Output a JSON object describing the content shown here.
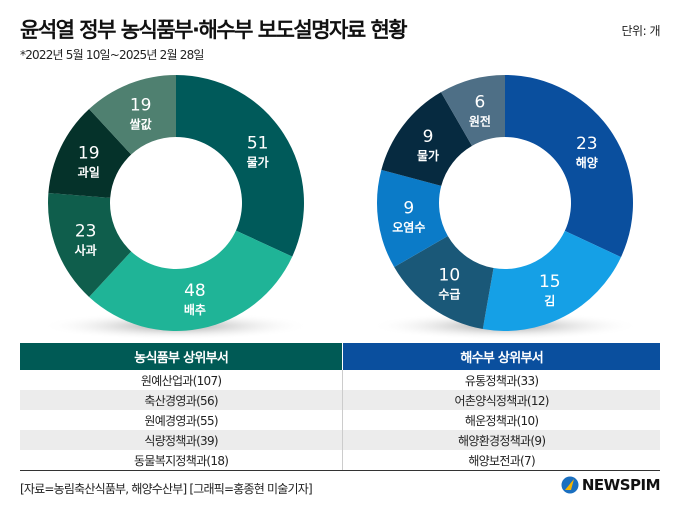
{
  "header": {
    "title": "윤석열 정부 농식품부·해수부 보도설명자료 현황",
    "subtitle": "*2022년 5월 10일~2025년 2월 28일",
    "unit": "단위: 개"
  },
  "chart_data": [
    {
      "type": "pie",
      "donut": true,
      "start": "top",
      "direction": "clockwise",
      "categories": [
        "물가",
        "배추",
        "사과",
        "과일",
        "쌀값"
      ],
      "values": [
        51,
        48,
        23,
        19,
        19
      ],
      "colors": [
        "#005a5a",
        "#1fb497",
        "#0f5e4c",
        "#05322a",
        "#4f8070"
      ]
    },
    {
      "type": "pie",
      "donut": true,
      "start": "top",
      "direction": "clockwise",
      "categories": [
        "해양",
        "김",
        "수급",
        "오염수",
        "물가",
        "원전"
      ],
      "values": [
        23,
        15,
        10,
        9,
        9,
        6
      ],
      "colors": [
        "#0a4f9e",
        "#15a0e6",
        "#1a5878",
        "#0b7bc8",
        "#062a40",
        "#4e6f86"
      ]
    }
  ],
  "table": {
    "headers": [
      "농식품부 상위부서",
      "해수부 상위부서"
    ],
    "rows": [
      [
        "원예산업과(107)",
        "유통정책과(33)"
      ],
      [
        "축산경영과(56)",
        "어촌양식정책과(12)"
      ],
      [
        "원예경영과(55)",
        "해운정책과(10)"
      ],
      [
        "식량정책과(39)",
        "해양환경정책과(9)"
      ],
      [
        "동물복지정책과(18)",
        "해양보전과(7)"
      ]
    ]
  },
  "footer": {
    "source": "[자료=농림축산식품부, 해양수산부] [그래픽=홍종현 미술기자]",
    "logo": "NEWSPIM"
  }
}
